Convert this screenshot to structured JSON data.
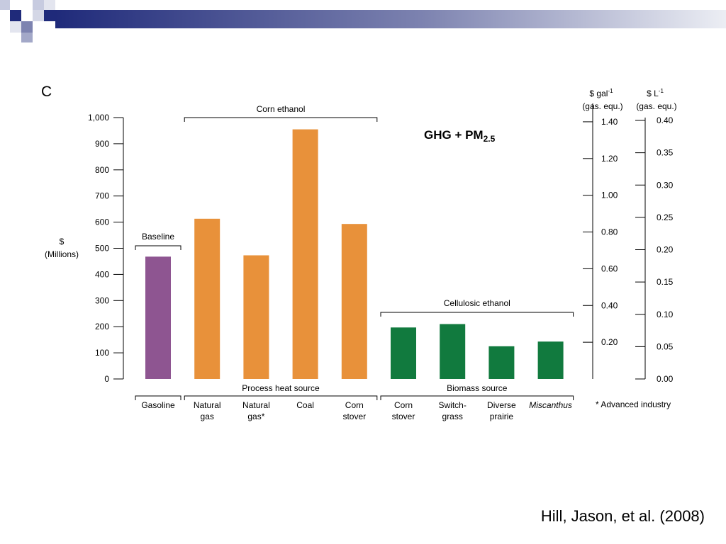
{
  "slide": {
    "citation": "Hill, Jason, et al. (2008)"
  },
  "colors": {
    "gasoline": "#8e5591",
    "corn": "#e8913a",
    "cellulosic": "#117a3e",
    "header_dark": "#1f2a7a",
    "header_light": "#d8dbe8"
  },
  "chart_data": {
    "type": "bar",
    "panel_label": "C",
    "title": "GHG + PM",
    "title_sub": "2.5",
    "ylabel": "$",
    "ylabel_unit": "(Millions)",
    "ylim": [
      0,
      1000
    ],
    "yticks": [
      0,
      100,
      200,
      300,
      400,
      500,
      600,
      700,
      800,
      900,
      1000
    ],
    "ytick_labels": [
      "0",
      "100",
      "200",
      "300",
      "400",
      "500",
      "600",
      "700",
      "800",
      "900",
      "1,000"
    ],
    "categories": [
      {
        "lines": [
          "Gasoline"
        ],
        "italic": false
      },
      {
        "lines": [
          "Natural",
          "gas"
        ],
        "italic": false
      },
      {
        "lines": [
          "Natural",
          "gas*"
        ],
        "italic": false
      },
      {
        "lines": [
          "Coal"
        ],
        "italic": false
      },
      {
        "lines": [
          "Corn",
          "stover"
        ],
        "italic": false
      },
      {
        "lines": [
          "Corn",
          "stover"
        ],
        "italic": false
      },
      {
        "lines": [
          "Switch-",
          "grass"
        ],
        "italic": false
      },
      {
        "lines": [
          "Diverse",
          "prairie"
        ],
        "italic": false
      },
      {
        "lines": [
          "Miscanthus"
        ],
        "italic": true
      }
    ],
    "values": [
      468,
      613,
      473,
      955,
      593,
      197,
      210,
      125,
      143
    ],
    "bar_groups": [
      "gasoline",
      "corn",
      "corn",
      "corn",
      "corn",
      "cellulosic",
      "cellulosic",
      "cellulosic",
      "cellulosic"
    ],
    "top_groups": [
      {
        "label": "Baseline",
        "from": 0,
        "to": 0
      },
      {
        "label": "Corn ethanol",
        "from": 1,
        "to": 4
      },
      {
        "label": "Cellulosic ethanol",
        "from": 5,
        "to": 8
      }
    ],
    "bottom_groups": [
      {
        "label": "",
        "from": 0,
        "to": 0
      },
      {
        "label": "Process heat source",
        "from": 1,
        "to": 4
      },
      {
        "label": "Biomass source",
        "from": 5,
        "to": 8
      }
    ],
    "footnote": "* Advanced industry",
    "right_axis_gal": {
      "label_line1": "$ gal",
      "label_sup": "-1",
      "label_line2": "(gas. equ.)",
      "ticks": [
        {
          "value": 0.2,
          "label": "0.20"
        },
        {
          "value": 0.4,
          "label": "0.40"
        },
        {
          "value": 0.6,
          "label": "0.60"
        },
        {
          "value": 0.8,
          "label": "0.80"
        },
        {
          "value": 1.0,
          "label": "1.00"
        },
        {
          "value": 1.2,
          "label": "1.20"
        },
        {
          "value": 1.4,
          "label": "1.40"
        }
      ],
      "max": 1.5
    },
    "right_axis_l": {
      "label_line1": "$ L",
      "label_sup": "-1",
      "label_line2": "(gas. equ.)",
      "ticks": [
        {
          "value": 0.0,
          "label": "0.00"
        },
        {
          "value": 0.05,
          "label": "0.05"
        },
        {
          "value": 0.1,
          "label": "0.10"
        },
        {
          "value": 0.15,
          "label": "0.15"
        },
        {
          "value": 0.2,
          "label": "0.20"
        },
        {
          "value": 0.25,
          "label": "0.25"
        },
        {
          "value": 0.3,
          "label": "0.30"
        },
        {
          "value": 0.35,
          "label": "0.35"
        },
        {
          "value": 0.4,
          "label": "0.40"
        }
      ],
      "max": 0.4
    }
  }
}
